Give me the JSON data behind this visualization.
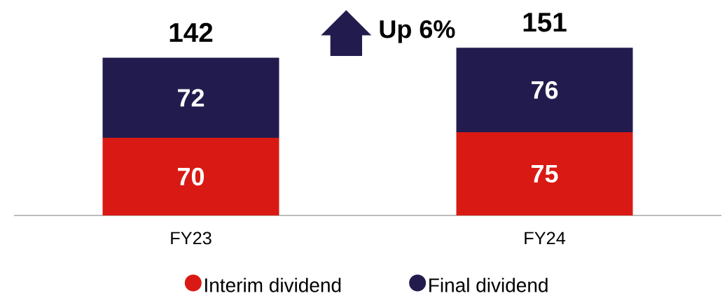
{
  "chart_data": {
    "type": "bar",
    "stacked": true,
    "categories": [
      "FY23",
      "FY24"
    ],
    "series": [
      {
        "name": "Interim dividend",
        "color": "#d91a14",
        "values": [
          70,
          75
        ],
        "value_labels": [
          "70",
          "75"
        ]
      },
      {
        "name": "Final dividend",
        "color": "#221c4e",
        "values": [
          72,
          76
        ],
        "value_labels": [
          "72",
          "76"
        ]
      }
    ],
    "totals": [
      "142",
      "151"
    ],
    "annotations": [
      "Up 6%"
    ],
    "legend": "bottom"
  }
}
